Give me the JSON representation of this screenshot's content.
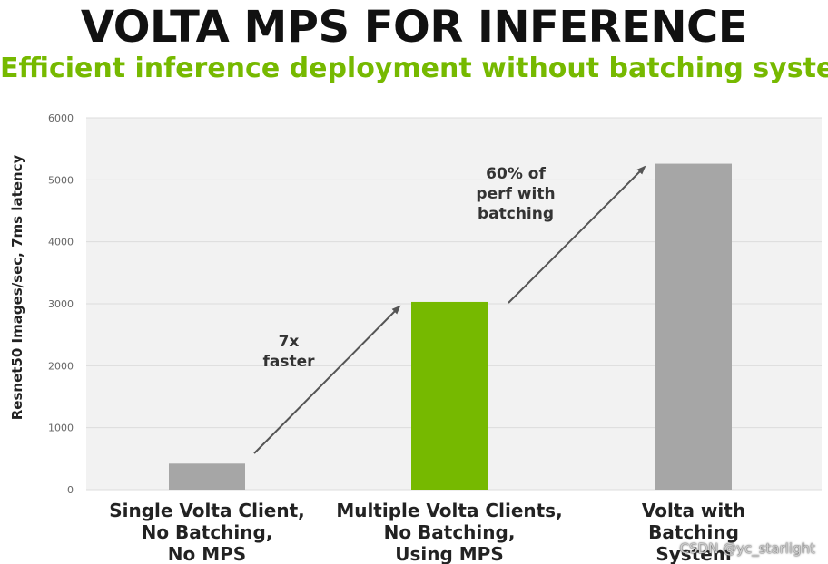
{
  "slide": {
    "title": "VOLTA MPS FOR INFERENCE",
    "subtitle": "Efficient inference deployment without batching system",
    "watermark": "CSDN @yc_starlight"
  },
  "chart_data": {
    "type": "bar",
    "title": "",
    "xlabel": "",
    "ylabel": "Resnet50 Images/sec, 7ms latency",
    "ylim": [
      0,
      6000
    ],
    "yticks": [
      0,
      1000,
      2000,
      3000,
      4000,
      5000,
      6000
    ],
    "grid": true,
    "categories": [
      [
        "Single Volta Client,",
        "No Batching,",
        "No MPS"
      ],
      [
        "Multiple Volta Clients,",
        "No Batching,",
        "Using MPS"
      ],
      [
        "Volta with",
        "Batching",
        "System"
      ]
    ],
    "values": [
      420,
      3030,
      5260
    ],
    "colors": [
      "#a6a6a6",
      "#76b900",
      "#a6a6a6"
    ],
    "annotations": [
      {
        "lines": [
          "7x",
          "faster"
        ],
        "from_bar": 0,
        "to_bar": 1
      },
      {
        "lines": [
          "60% of",
          "perf with",
          "batching"
        ],
        "from_bar": 1,
        "to_bar": 2
      }
    ]
  }
}
